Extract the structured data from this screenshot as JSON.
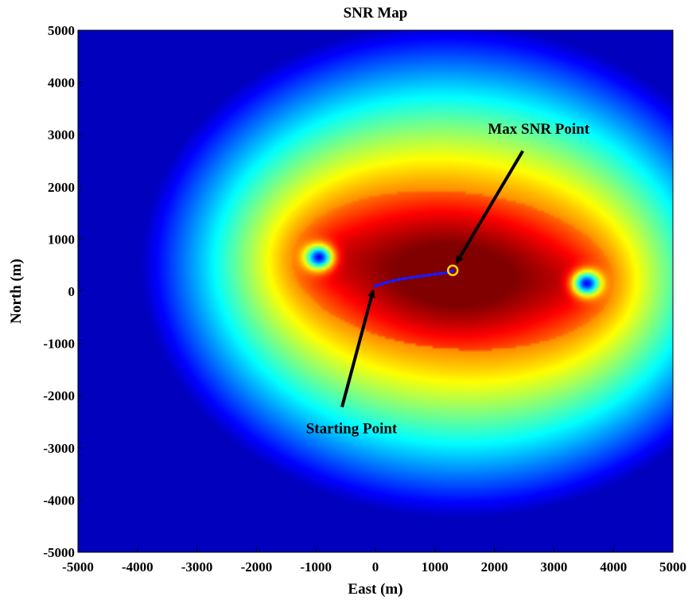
{
  "chart_data": {
    "type": "heatmap",
    "title": "SNR Map",
    "xlabel": "East (m)",
    "ylabel": "North (m)",
    "xlim": [
      -5000,
      5000
    ],
    "ylim": [
      -5000,
      5000
    ],
    "xticks": [
      -5000,
      -4000,
      -3000,
      -2000,
      -1000,
      0,
      1000,
      2000,
      3000,
      4000,
      5000
    ],
    "yticks": [
      -5000,
      -4000,
      -3000,
      -2000,
      -1000,
      0,
      1000,
      2000,
      3000,
      4000,
      5000
    ],
    "colormap": "jet",
    "grid": false,
    "sources": [
      {
        "x": -950,
        "y": 650
      },
      {
        "x": 3550,
        "y": 150
      }
    ],
    "trajectory": {
      "color": "#1a1aff",
      "x": [
        0,
        100,
        200,
        300,
        400,
        500,
        600,
        700,
        800,
        900,
        1000,
        1100,
        1200,
        1300
      ],
      "y": [
        100,
        140,
        170,
        200,
        225,
        245,
        262,
        280,
        295,
        310,
        325,
        340,
        360,
        390
      ]
    },
    "max_point": {
      "x": 1300,
      "y": 400,
      "color": "#ffd700"
    },
    "annotations": [
      {
        "text": "Max SNR Point",
        "x": 1300,
        "y": 400
      },
      {
        "text": "Starting Point",
        "x": 0,
        "y": 100
      }
    ]
  }
}
